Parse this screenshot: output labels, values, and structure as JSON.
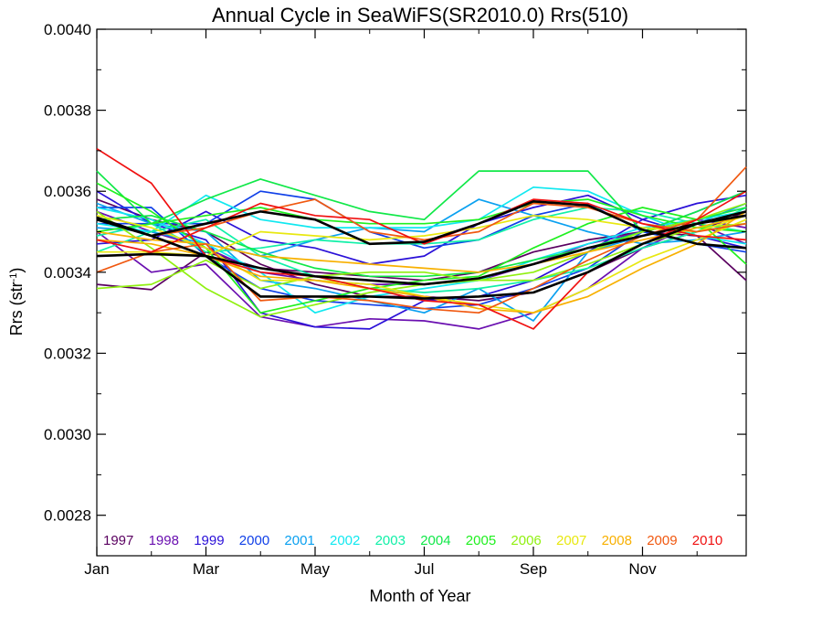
{
  "chart_data": {
    "type": "line",
    "title": "Annual Cycle in SeaWiFS(SR2010.0) Rrs(510)",
    "xlabel": "Month of Year",
    "ylabel": "Rrs (str",
    "ylabel_sup": "-1",
    "ylabel_close": ")",
    "xlim": [
      1,
      12.9
    ],
    "ylim": [
      0.0027,
      0.004
    ],
    "x_ticks": [
      {
        "x": 1,
        "label": "Jan"
      },
      {
        "x": 3,
        "label": "Mar"
      },
      {
        "x": 5,
        "label": "May"
      },
      {
        "x": 7,
        "label": "Jul"
      },
      {
        "x": 9,
        "label": "Sep"
      },
      {
        "x": 11,
        "label": "Nov"
      }
    ],
    "y_ticks": [
      {
        "y": 0.0028,
        "label": "0.0028"
      },
      {
        "y": 0.003,
        "label": "0.0030"
      },
      {
        "y": 0.0032,
        "label": "0.0032"
      },
      {
        "y": 0.0034,
        "label": "0.0034"
      },
      {
        "y": 0.0036,
        "label": "0.0036"
      },
      {
        "y": 0.0038,
        "label": "0.0038"
      },
      {
        "y": 0.004,
        "label": "0.0040"
      }
    ],
    "legend_placement": "bottom-inside",
    "x": [
      1,
      2,
      3,
      4,
      5,
      6,
      7,
      8,
      9,
      10,
      11,
      12,
      12.9
    ],
    "series": [
      {
        "name": "1997",
        "color": "#5a0060",
        "groups": [
          [
            0.00337,
            0.003357,
            0.00345,
            0.00341,
            0.0034,
            0.00339,
            0.00338,
            0.0034,
            0.00345,
            0.00348,
            0.0035,
            0.00349,
            0.00338
          ],
          [
            0.00358,
            0.00353,
            0.0035,
            0.00342,
            0.00337,
            0.00334,
            0.00334,
            0.00333,
            0.00335,
            0.0034,
            0.00346,
            0.0035,
            0.00355
          ]
        ]
      },
      {
        "name": "1998",
        "color": "#6a0fb0",
        "groups": [
          [
            0.0035,
            0.0034,
            0.00342,
            0.00329,
            0.003265,
            0.003285,
            0.00328,
            0.00326,
            0.0033,
            0.00336,
            0.00346,
            0.00352,
            0.00347
          ],
          [
            0.00355,
            0.0035,
            0.00346,
            0.0034,
            0.00338,
            0.00337,
            0.00337,
            0.00338,
            0.00342,
            0.00347,
            0.0035,
            0.00353,
            0.00351
          ]
        ]
      },
      {
        "name": "1999",
        "color": "#2a10d8",
        "groups": [
          [
            0.0036,
            0.00352,
            0.00348,
            0.0033,
            0.003265,
            0.00326,
            0.00333,
            0.00334,
            0.00338,
            0.00345,
            0.00353,
            0.00357,
            0.00359
          ],
          [
            0.00347,
            0.00348,
            0.00355,
            0.00348,
            0.00346,
            0.00342,
            0.00344,
            0.00352,
            0.00356,
            0.00359,
            0.00353,
            0.00349,
            0.00346
          ]
        ]
      },
      {
        "name": "2000",
        "color": "#1040e8",
        "groups": [
          [
            0.00356,
            0.00356,
            0.00344,
            0.00336,
            0.00333,
            0.00332,
            0.00331,
            0.00332,
            0.00336,
            0.00341,
            0.0035,
            0.00355,
            0.0036
          ],
          [
            0.00352,
            0.00352,
            0.00352,
            0.0036,
            0.00358,
            0.0035,
            0.00346,
            0.00348,
            0.00354,
            0.00357,
            0.0035,
            0.00347,
            0.00345
          ]
        ]
      },
      {
        "name": "2001",
        "color": "#0aa0f0",
        "groups": [
          [
            0.00357,
            0.00352,
            0.0035,
            0.00338,
            0.00336,
            0.00333,
            0.0033,
            0.00336,
            0.00328,
            0.00345,
            0.00349,
            0.00352,
            0.00357
          ],
          [
            0.00351,
            0.0035,
            0.00347,
            0.00344,
            0.00348,
            0.00351,
            0.0035,
            0.00358,
            0.00354,
            0.0035,
            0.00347,
            0.00348,
            0.0035
          ]
        ]
      },
      {
        "name": "2002",
        "color": "#10e8f0",
        "groups": [
          [
            0.00352,
            0.0035,
            0.00359,
            0.00353,
            0.00351,
            0.00351,
            0.00351,
            0.00353,
            0.00361,
            0.0036,
            0.00354,
            0.00349,
            0.00347
          ],
          [
            0.00356,
            0.00353,
            0.00347,
            0.0034,
            0.0033,
            0.00334,
            0.00336,
            0.00338,
            0.00343,
            0.00347,
            0.00351,
            0.00353,
            0.00355
          ]
        ]
      },
      {
        "name": "2003",
        "color": "#10f0a8",
        "groups": [
          [
            0.00349,
            0.00352,
            0.00345,
            0.00346,
            0.00348,
            0.00347,
            0.00347,
            0.00348,
            0.00353,
            0.00356,
            0.00355,
            0.00352,
            0.0035
          ],
          [
            0.00345,
            0.0035,
            0.00353,
            0.00344,
            0.00339,
            0.00336,
            0.00335,
            0.00336,
            0.00338,
            0.00341,
            0.00346,
            0.0035,
            0.00356
          ]
        ]
      },
      {
        "name": "2004",
        "color": "#10e848",
        "groups": [
          [
            0.00365,
            0.00352,
            0.00358,
            0.00363,
            0.00359,
            0.00355,
            0.00353,
            0.00365,
            0.00365,
            0.00365,
            0.0035,
            0.00355,
            0.0036
          ],
          [
            0.00353,
            0.00354,
            0.0035,
            0.00345,
            0.00341,
            0.00339,
            0.00339,
            0.0034,
            0.00343,
            0.00346,
            0.0035,
            0.00353,
            0.00356
          ]
        ]
      },
      {
        "name": "2005",
        "color": "#20f020",
        "groups": [
          [
            0.00362,
            0.00355,
            0.00346,
            0.0033,
            0.00333,
            0.00336,
            0.00338,
            0.00339,
            0.00346,
            0.00352,
            0.00356,
            0.00353,
            0.00342
          ],
          [
            0.0035,
            0.00352,
            0.00354,
            0.00356,
            0.00353,
            0.00352,
            0.00352,
            0.00353,
            0.00357,
            0.00358,
            0.00354,
            0.00351,
            0.0035
          ]
        ]
      },
      {
        "name": "2006",
        "color": "#90f010",
        "groups": [
          [
            0.00336,
            0.00337,
            0.00343,
            0.00336,
            0.00339,
            0.0034,
            0.0034,
            0.00338,
            0.00338,
            0.00342,
            0.00347,
            0.00351,
            0.00352
          ],
          [
            0.00355,
            0.00346,
            0.00336,
            0.00329,
            0.00332,
            0.00335,
            0.00337,
            0.00338,
            0.0034,
            0.00345,
            0.0035,
            0.00353,
            0.00357
          ]
        ]
      },
      {
        "name": "2007",
        "color": "#e8e810",
        "groups": [
          [
            0.00345,
            0.00345,
            0.00344,
            0.0035,
            0.00349,
            0.00348,
            0.00349,
            0.00351,
            0.00354,
            0.00353,
            0.00351,
            0.0035,
            0.00354
          ],
          [
            0.00354,
            0.00351,
            0.00346,
            0.00338,
            0.00338,
            0.00337,
            0.00334,
            0.00332,
            0.0033,
            0.00336,
            0.00343,
            0.00348,
            0.00353
          ]
        ]
      },
      {
        "name": "2008",
        "color": "#f8b000",
        "groups": [
          [
            0.00348,
            0.00347,
            0.00344,
            0.00339,
            0.00338,
            0.00336,
            0.00334,
            0.00331,
            0.0033,
            0.00334,
            0.00341,
            0.00347,
            0.00355
          ],
          [
            0.0035,
            0.00348,
            0.00347,
            0.00344,
            0.00343,
            0.00342,
            0.00341,
            0.0034,
            0.00342,
            0.00345,
            0.00348,
            0.00351,
            0.00354
          ]
        ]
      },
      {
        "name": "2009",
        "color": "#f05810",
        "groups": [
          [
            0.0034,
            0.00345,
            0.00347,
            0.00333,
            0.00334,
            0.00333,
            0.00331,
            0.0033,
            0.00336,
            0.00343,
            0.00349,
            0.00353,
            0.00366
          ],
          [
            0.00353,
            0.00349,
            0.00351,
            0.00355,
            0.00358,
            0.0035,
            0.00348,
            0.0035,
            0.00357,
            0.00356,
            0.00352,
            0.0035,
            0.00352
          ]
        ]
      },
      {
        "name": "2010",
        "color": "#f01010",
        "groups": [
          [
            0.003705,
            0.00362,
            0.00344,
            0.0034,
            0.00339,
            0.00336,
            0.00333,
            0.00332,
            0.00326,
            0.0034,
            0.00347,
            0.00353,
            0.0036
          ],
          [
            0.00348,
            0.00345,
            0.00351,
            0.00357,
            0.00354,
            0.00353,
            0.00347,
            0.00352,
            0.00358,
            0.00357,
            0.00352,
            0.00349,
            0.00348
          ]
        ]
      }
    ],
    "mean_series": {
      "color": "#000000",
      "groups": [
        [
          0.003535,
          0.00349,
          0.00352,
          0.00355,
          0.00353,
          0.00347,
          0.003475,
          0.00352,
          0.003575,
          0.003565,
          0.003505,
          0.00347,
          0.00346
        ],
        [
          0.00353,
          0.00349,
          0.00344,
          0.00341,
          0.00339,
          0.00338,
          0.00337,
          0.003385,
          0.00342,
          0.00346,
          0.00349,
          0.00352,
          0.00354
        ],
        [
          0.00344,
          0.003445,
          0.00344,
          0.00334,
          0.00334,
          0.00334,
          0.003335,
          0.00334,
          0.00335,
          0.0034,
          0.00347,
          0.00352,
          0.00355
        ]
      ]
    }
  }
}
